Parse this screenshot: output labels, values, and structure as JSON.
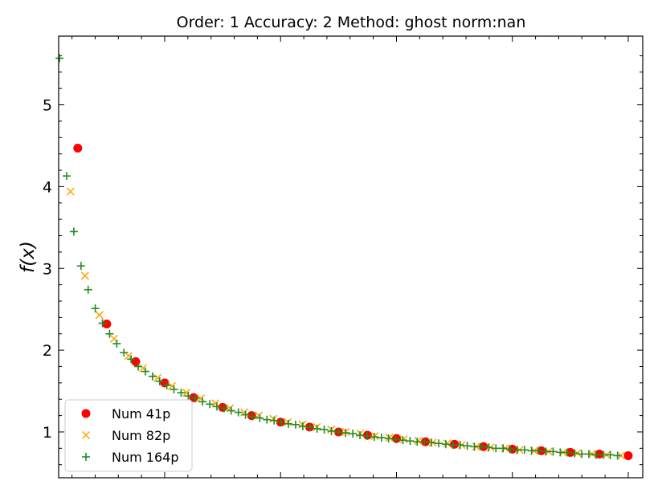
{
  "chart_data": {
    "type": "scatter",
    "title": "Order: 1 Accuracy: 2 Method: ghost norm:nan",
    "xlabel": "",
    "ylabel": "f(x)",
    "xlim": [
      0.017,
      1.025
    ],
    "ylim": [
      0.44,
      5.84
    ],
    "yticks": [
      1,
      2,
      3,
      4,
      5
    ],
    "xticks_major": [
      0.2,
      0.4,
      0.6,
      0.8,
      1.0
    ],
    "grid": false,
    "legend_position": "lower-left",
    "series": [
      {
        "name": "Num 41p",
        "marker": "circle",
        "color": "#ff0000",
        "x": [
          0.05,
          0.1,
          0.15,
          0.2,
          0.25,
          0.3,
          0.35,
          0.4,
          0.45,
          0.5,
          0.55,
          0.6,
          0.65,
          0.7,
          0.75,
          0.8,
          0.85,
          0.9,
          0.95,
          1.0
        ],
        "y": [
          4.47,
          2.32,
          1.86,
          1.6,
          1.42,
          1.3,
          1.2,
          1.12,
          1.06,
          1.0,
          0.96,
          0.92,
          0.88,
          0.85,
          0.82,
          0.79,
          0.77,
          0.75,
          0.73,
          0.71
        ]
      },
      {
        "name": "Num 82p",
        "marker": "x",
        "color": "#ffa500",
        "x": [
          0.0375,
          0.0625,
          0.0875,
          0.1125,
          0.1375,
          0.1625,
          0.1875,
          0.2125,
          0.2375,
          0.2625,
          0.2875,
          0.3125,
          0.3375,
          0.3625,
          0.3875,
          0.4125,
          0.4375,
          0.4625,
          0.4875,
          0.5125,
          0.5375,
          0.5625,
          0.5875,
          0.6125,
          0.6375,
          0.6625,
          0.6875,
          0.7125,
          0.7375,
          0.7625,
          0.7875,
          0.8125,
          0.8375,
          0.8625,
          0.8875,
          0.9125,
          0.9375,
          0.9625,
          0.9875
        ],
        "y": [
          3.94,
          2.91,
          2.43,
          2.14,
          1.93,
          1.78,
          1.66,
          1.56,
          1.48,
          1.41,
          1.35,
          1.29,
          1.24,
          1.2,
          1.16,
          1.12,
          1.09,
          1.06,
          1.03,
          1.0,
          0.98,
          0.95,
          0.93,
          0.91,
          0.89,
          0.87,
          0.86,
          0.84,
          0.82,
          0.81,
          0.8,
          0.78,
          0.77,
          0.76,
          0.75,
          0.74,
          0.73,
          0.72,
          0.71
        ]
      },
      {
        "name": "Num 164p",
        "marker": "plus",
        "color": "#228b22",
        "x": [
          0.0185,
          0.0309,
          0.0432,
          0.0556,
          0.0679,
          0.0802,
          0.0926,
          0.1049,
          0.1173,
          0.1296,
          0.142,
          0.1543,
          0.1667,
          0.179,
          0.1914,
          0.2037,
          0.216,
          0.2284,
          0.2407,
          0.2531,
          0.2654,
          0.2778,
          0.2901,
          0.3025,
          0.3148,
          0.3272,
          0.3395,
          0.3519,
          0.3642,
          0.3765,
          0.3889,
          0.4012,
          0.4136,
          0.4259,
          0.4383,
          0.4506,
          0.463,
          0.4753,
          0.4877,
          0.5,
          0.5123,
          0.5247,
          0.537,
          0.5494,
          0.5617,
          0.5741,
          0.5864,
          0.5988,
          0.6111,
          0.6235,
          0.6358,
          0.6481,
          0.6605,
          0.6728,
          0.6852,
          0.6975,
          0.7099,
          0.7222,
          0.7346,
          0.7469,
          0.7593,
          0.7716,
          0.784,
          0.7963,
          0.8086,
          0.821,
          0.8333,
          0.8457,
          0.858,
          0.8704,
          0.8827,
          0.8951,
          0.9074,
          0.9198,
          0.9321,
          0.9444,
          0.9568,
          0.9691,
          0.9815
        ],
        "y": [
          5.57,
          4.13,
          3.45,
          3.03,
          2.74,
          2.51,
          2.33,
          2.2,
          2.08,
          1.97,
          1.89,
          1.8,
          1.74,
          1.68,
          1.62,
          1.57,
          1.52,
          1.48,
          1.44,
          1.41,
          1.37,
          1.34,
          1.31,
          1.29,
          1.26,
          1.24,
          1.21,
          1.19,
          1.17,
          1.15,
          1.14,
          1.12,
          1.1,
          1.09,
          1.07,
          1.06,
          1.04,
          1.03,
          1.01,
          1.0,
          0.99,
          0.98,
          0.96,
          0.95,
          0.94,
          0.93,
          0.92,
          0.91,
          0.9,
          0.89,
          0.88,
          0.88,
          0.87,
          0.86,
          0.85,
          0.84,
          0.84,
          0.83,
          0.82,
          0.82,
          0.81,
          0.8,
          0.8,
          0.79,
          0.78,
          0.78,
          0.77,
          0.77,
          0.76,
          0.76,
          0.75,
          0.75,
          0.74,
          0.73,
          0.73,
          0.72,
          0.72,
          0.72,
          0.71
        ]
      }
    ]
  }
}
